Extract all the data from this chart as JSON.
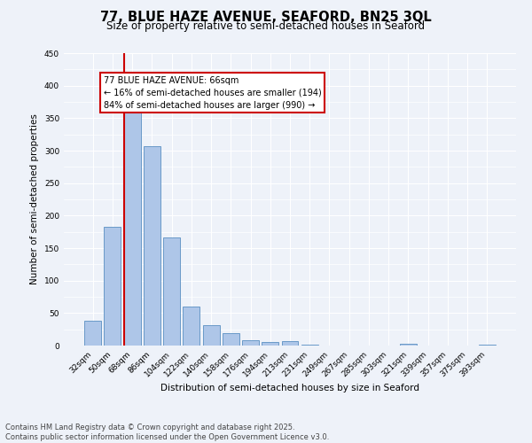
{
  "title": "77, BLUE HAZE AVENUE, SEAFORD, BN25 3QL",
  "subtitle": "Size of property relative to semi-detached houses in Seaford",
  "xlabel": "Distribution of semi-detached houses by size in Seaford",
  "ylabel": "Number of semi-detached properties",
  "bar_labels": [
    "32sqm",
    "50sqm",
    "68sqm",
    "86sqm",
    "104sqm",
    "122sqm",
    "140sqm",
    "158sqm",
    "176sqm",
    "194sqm",
    "213sqm",
    "231sqm",
    "249sqm",
    "267sqm",
    "285sqm",
    "303sqm",
    "321sqm",
    "339sqm",
    "357sqm",
    "375sqm",
    "393sqm"
  ],
  "bar_values": [
    38,
    183,
    365,
    307,
    167,
    60,
    32,
    19,
    8,
    5,
    7,
    1,
    0,
    0,
    0,
    0,
    3,
    0,
    0,
    0,
    2
  ],
  "bar_color": "#aec6e8",
  "bar_edge_color": "#5a8fc2",
  "vline_color": "#cc0000",
  "annotation_title": "77 BLUE HAZE AVENUE: 66sqm",
  "annotation_line1": "← 16% of semi-detached houses are smaller (194)",
  "annotation_line2": "84% of semi-detached houses are larger (990) →",
  "annotation_box_color": "#cc0000",
  "ylim": [
    0,
    450
  ],
  "yticks": [
    0,
    50,
    100,
    150,
    200,
    250,
    300,
    350,
    400,
    450
  ],
  "background_color": "#eef2f9",
  "grid_color": "#ffffff",
  "footer_line1": "Contains HM Land Registry data © Crown copyright and database right 2025.",
  "footer_line2": "Contains public sector information licensed under the Open Government Licence v3.0.",
  "title_fontsize": 10.5,
  "subtitle_fontsize": 8.5,
  "axis_label_fontsize": 7.5,
  "tick_fontsize": 6.5
}
